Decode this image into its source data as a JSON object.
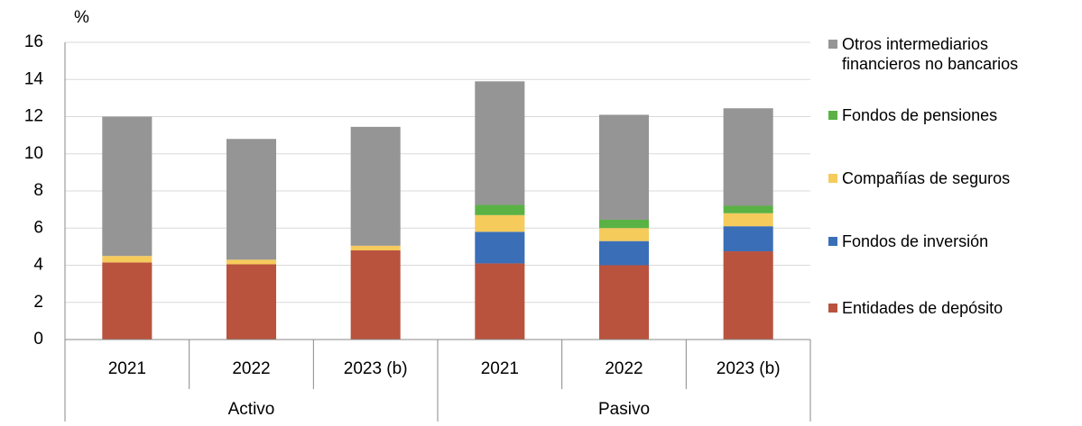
{
  "chart_data": {
    "type": "stacked-bar",
    "y_label": "%",
    "groups": [
      {
        "name": "Activo",
        "categories": [
          "2021",
          "2022",
          "2023 (b)"
        ]
      },
      {
        "name": "Pasivo",
        "categories": [
          "2021",
          "2022",
          "2023 (b)"
        ]
      }
    ],
    "series": [
      {
        "name": "Entidades de depósito",
        "color": "#b9533e",
        "values": [
          4.15,
          4.05,
          4.8,
          4.1,
          4.0,
          4.75
        ]
      },
      {
        "name": "Fondos de inversión",
        "color": "#3a6fb8",
        "values": [
          0,
          0,
          0,
          1.7,
          1.3,
          1.35
        ]
      },
      {
        "name": "Compañías de seguros",
        "color": "#f5cb5c",
        "values": [
          0.35,
          0.25,
          0.25,
          0.9,
          0.7,
          0.7
        ]
      },
      {
        "name": "Fondos de pensiones",
        "color": "#5ab244",
        "values": [
          0,
          0,
          0,
          0.55,
          0.45,
          0.4
        ]
      },
      {
        "name": "Otros intermediarios financieros no bancarios",
        "color": "#959595",
        "values": [
          7.5,
          6.5,
          6.4,
          6.65,
          5.65,
          5.25
        ]
      }
    ],
    "ylim": [
      0,
      16
    ],
    "yticks": [
      0,
      2,
      4,
      6,
      8,
      10,
      12,
      14,
      16
    ],
    "grid": true,
    "legend": "right"
  }
}
